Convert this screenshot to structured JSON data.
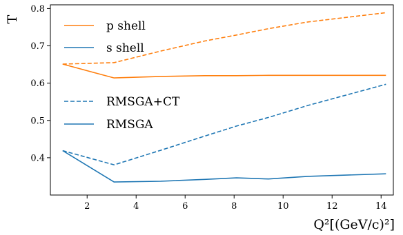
{
  "chart_data": {
    "type": "line",
    "title": "",
    "xlabel": "Q²[(GeV/c)²]",
    "ylabel": "T",
    "xlim": [
      0.5,
      14.5
    ],
    "ylim": [
      0.3,
      0.81
    ],
    "xticks": [
      2,
      4,
      6,
      8,
      10,
      12,
      14
    ],
    "yticks": [
      0.4,
      0.5,
      0.6,
      0.7,
      0.8
    ],
    "grid": false,
    "legend_shells": [
      {
        "label": "p shell",
        "color": "#ff7f0e"
      },
      {
        "label": "s shell",
        "color": "#1f77b4"
      }
    ],
    "legend_models": [
      {
        "label": "RMSGA+CT",
        "style": "dashed"
      },
      {
        "label": "RMSGA",
        "style": "solid"
      }
    ],
    "series": [
      {
        "shell": "p",
        "model": "RMSGA+CT",
        "color": "#ff7f0e",
        "dashed": true,
        "x": [
          1.0,
          3.1,
          5.0,
          6.8,
          8.1,
          9.4,
          11.0,
          14.2
        ],
        "y": [
          0.651,
          0.655,
          0.686,
          0.713,
          0.729,
          0.746,
          0.764,
          0.789
        ]
      },
      {
        "shell": "p",
        "model": "RMSGA",
        "color": "#ff7f0e",
        "dashed": false,
        "x": [
          1.0,
          3.1,
          5.0,
          6.8,
          8.1,
          9.4,
          11.0,
          14.2
        ],
        "y": [
          0.651,
          0.614,
          0.618,
          0.62,
          0.62,
          0.621,
          0.621,
          0.621
        ]
      },
      {
        "shell": "s",
        "model": "RMSGA+CT",
        "color": "#1f77b4",
        "dashed": true,
        "x": [
          1.0,
          3.1,
          5.0,
          6.8,
          8.1,
          9.4,
          11.0,
          14.2
        ],
        "y": [
          0.419,
          0.381,
          0.42,
          0.458,
          0.485,
          0.508,
          0.54,
          0.597
        ]
      },
      {
        "shell": "s",
        "model": "RMSGA",
        "color": "#1f77b4",
        "dashed": false,
        "x": [
          1.0,
          3.1,
          5.0,
          6.8,
          8.1,
          9.4,
          11.0,
          14.2
        ],
        "y": [
          0.419,
          0.335,
          0.337,
          0.342,
          0.346,
          0.343,
          0.35,
          0.357
        ]
      }
    ]
  }
}
